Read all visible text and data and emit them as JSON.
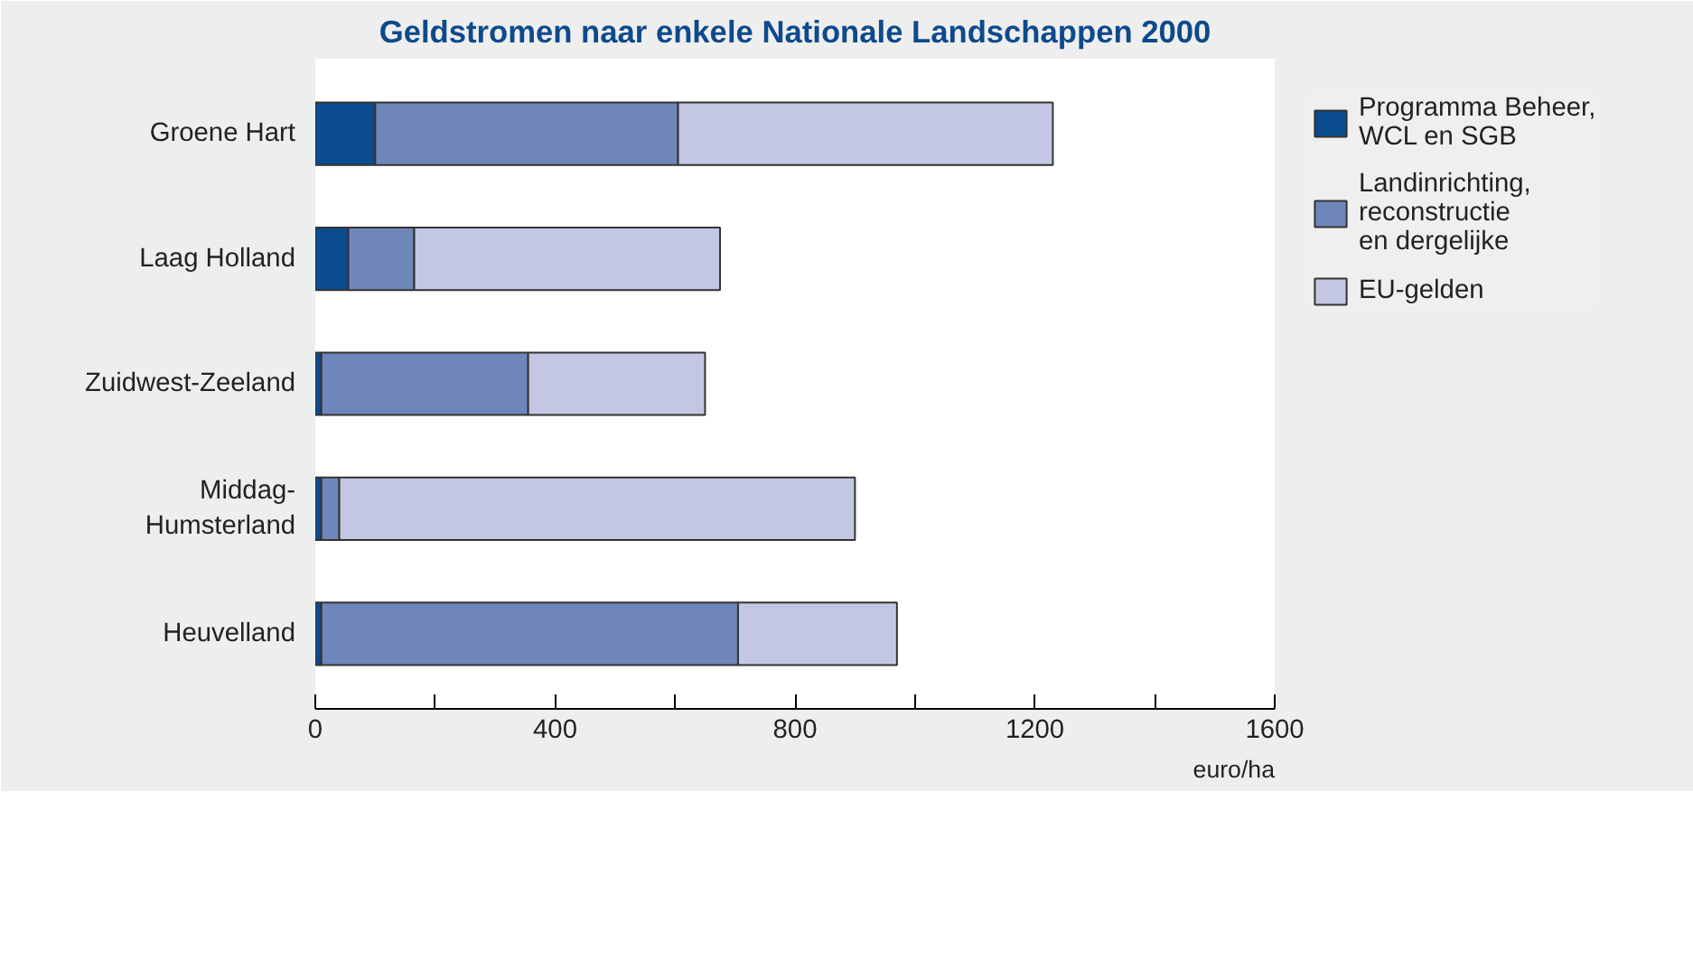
{
  "chart_data": {
    "type": "bar",
    "orientation": "horizontal",
    "stacked": true,
    "title": "Geldstromen naar enkele Nationale Landschappen 2000",
    "xlabel": "euro/ha",
    "categories": [
      "Groene Hart",
      "Laag Holland",
      "Zuidwest-Zeeland",
      "Middag-\nHumsterland",
      "Heuvelland"
    ],
    "series": [
      {
        "name": "Programma Beheer,\nWCL en SGB",
        "color": "#0b4c8f",
        "values": [
          100,
          55,
          10,
          10,
          10
        ]
      },
      {
        "name": "Landinrichting,\nreconstructie\nen dergelijke",
        "color": "#6f86bb",
        "values": [
          505,
          110,
          345,
          30,
          695
        ]
      },
      {
        "name": "EU-gelden",
        "color": "#c3c7e3",
        "values": [
          625,
          510,
          295,
          860,
          265
        ]
      }
    ],
    "xlim": [
      0,
      1600
    ],
    "xticks": [
      0,
      {
        "value": 200,
        "label": null
      },
      400,
      {
        "value": 600,
        "label": null
      },
      800,
      {
        "value": 1000,
        "label": null
      },
      1200,
      {
        "value": 1400,
        "label": null
      },
      1600
    ],
    "grid": false,
    "legend": "top right"
  }
}
